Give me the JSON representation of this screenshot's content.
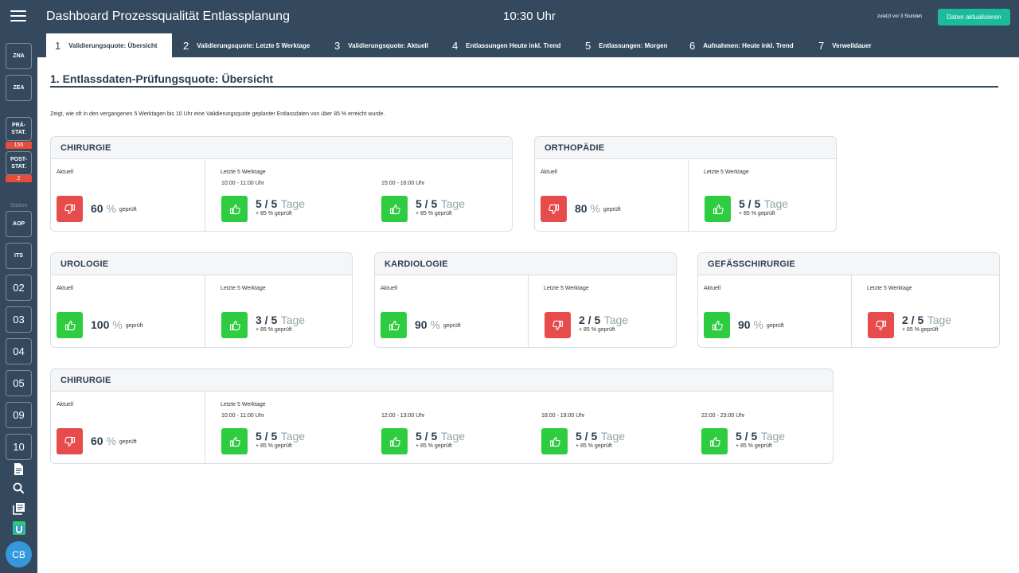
{
  "header": {
    "title": "Dashboard Prozessqualität Entlassplanung",
    "clock": "10:30 Uhr",
    "last_update": "zuletzt vor 3 Stunden",
    "refresh_label": "Daten aktualisieren"
  },
  "sidebar": {
    "zna": "ZNA",
    "zea": "ZEA",
    "prae_l1": "PRÄ-",
    "prae_l2": "STAT.",
    "prae_badge": "155",
    "post_l1": "POST-",
    "post_l2": "STAT.",
    "post_badge": "2",
    "station_label": "Station",
    "aop": "AOP",
    "its": "ITS",
    "s02": "02",
    "s03": "03",
    "s04": "04",
    "s05": "05",
    "s09": "09",
    "s10": "10",
    "icons": [
      "document-icon",
      "search-icon",
      "library-icon",
      "u-logo-icon"
    ],
    "avatar": "CB"
  },
  "tabs": [
    {
      "num": "1",
      "label": "Validierungsquote: Übersicht"
    },
    {
      "num": "2",
      "label": "Validierungsquote: Letzte 5 Werktage"
    },
    {
      "num": "3",
      "label": "Validierungsquote: Aktuell"
    },
    {
      "num": "4",
      "label": "Entlassungen Heute inkl. Trend"
    },
    {
      "num": "5",
      "label": "Entlassungen: Morgen"
    },
    {
      "num": "6",
      "label": "Aufnahmen: Heute inkl. Trend"
    },
    {
      "num": "7",
      "label": "Verweildauer"
    }
  ],
  "main": {
    "title": "1. Entlassdaten-Prüfungsquote: Übersicht",
    "description": "Zeigt, wie oft in den vergangenen 5 Werktagen bis 10 Uhr eine Validierungsquote geplanter Entlassdaten von über 85 % erreicht wurde."
  },
  "labels": {
    "aktuell": "Aktuell",
    "letzte": "Letzte 5 Werktage",
    "percent": "%",
    "geprueft": "geprüft",
    "tage": "Tage",
    "plus85": "+ 85 % geprüft"
  },
  "colors": {
    "up": "#2ecc40",
    "down": "#e74c4c",
    "header": "#34495e",
    "accent": "#1abc9c"
  },
  "cards": [
    {
      "title": "CHIRURGIE",
      "aktuell": {
        "value": "60",
        "status": "down"
      },
      "slots": [
        {
          "time": "10:00 - 11:00 Uhr",
          "days": "5 / 5",
          "status": "up"
        },
        {
          "time": "15:00 - 16:00 Uhr",
          "days": "5 / 5",
          "status": "up"
        }
      ]
    },
    {
      "title": "ORTHOPÄDIE",
      "aktuell": {
        "value": "80",
        "status": "down"
      },
      "slots": [
        {
          "time": "",
          "days": "5 / 5",
          "status": "up"
        }
      ]
    },
    {
      "title": "UROLOGIE",
      "aktuell": {
        "value": "100",
        "status": "up"
      },
      "slots": [
        {
          "time": "",
          "days": "3 / 5",
          "status": "up"
        }
      ]
    },
    {
      "title": "KARDIOLOGIE",
      "aktuell": {
        "value": "90",
        "status": "up"
      },
      "slots": [
        {
          "time": "",
          "days": "2 / 5",
          "status": "down"
        }
      ]
    },
    {
      "title": "GEFÄSSCHIRURGIE",
      "aktuell": {
        "value": "90",
        "status": "up"
      },
      "slots": [
        {
          "time": "",
          "days": "2 / 5",
          "status": "down"
        }
      ]
    },
    {
      "title": "CHIRURGIE",
      "aktuell": {
        "value": "60",
        "status": "down"
      },
      "slots": [
        {
          "time": "10:00 - 11:00 Uhr",
          "days": "5 / 5",
          "status": "up"
        },
        {
          "time": "12:00 - 13:00 Uhr",
          "days": "5 / 5",
          "status": "up"
        },
        {
          "time": "18:00 - 19:00 Uhr",
          "days": "5 / 5",
          "status": "up"
        },
        {
          "time": "22:00 - 23:00 Uhr",
          "days": "5 / 5",
          "status": "up"
        }
      ]
    }
  ]
}
